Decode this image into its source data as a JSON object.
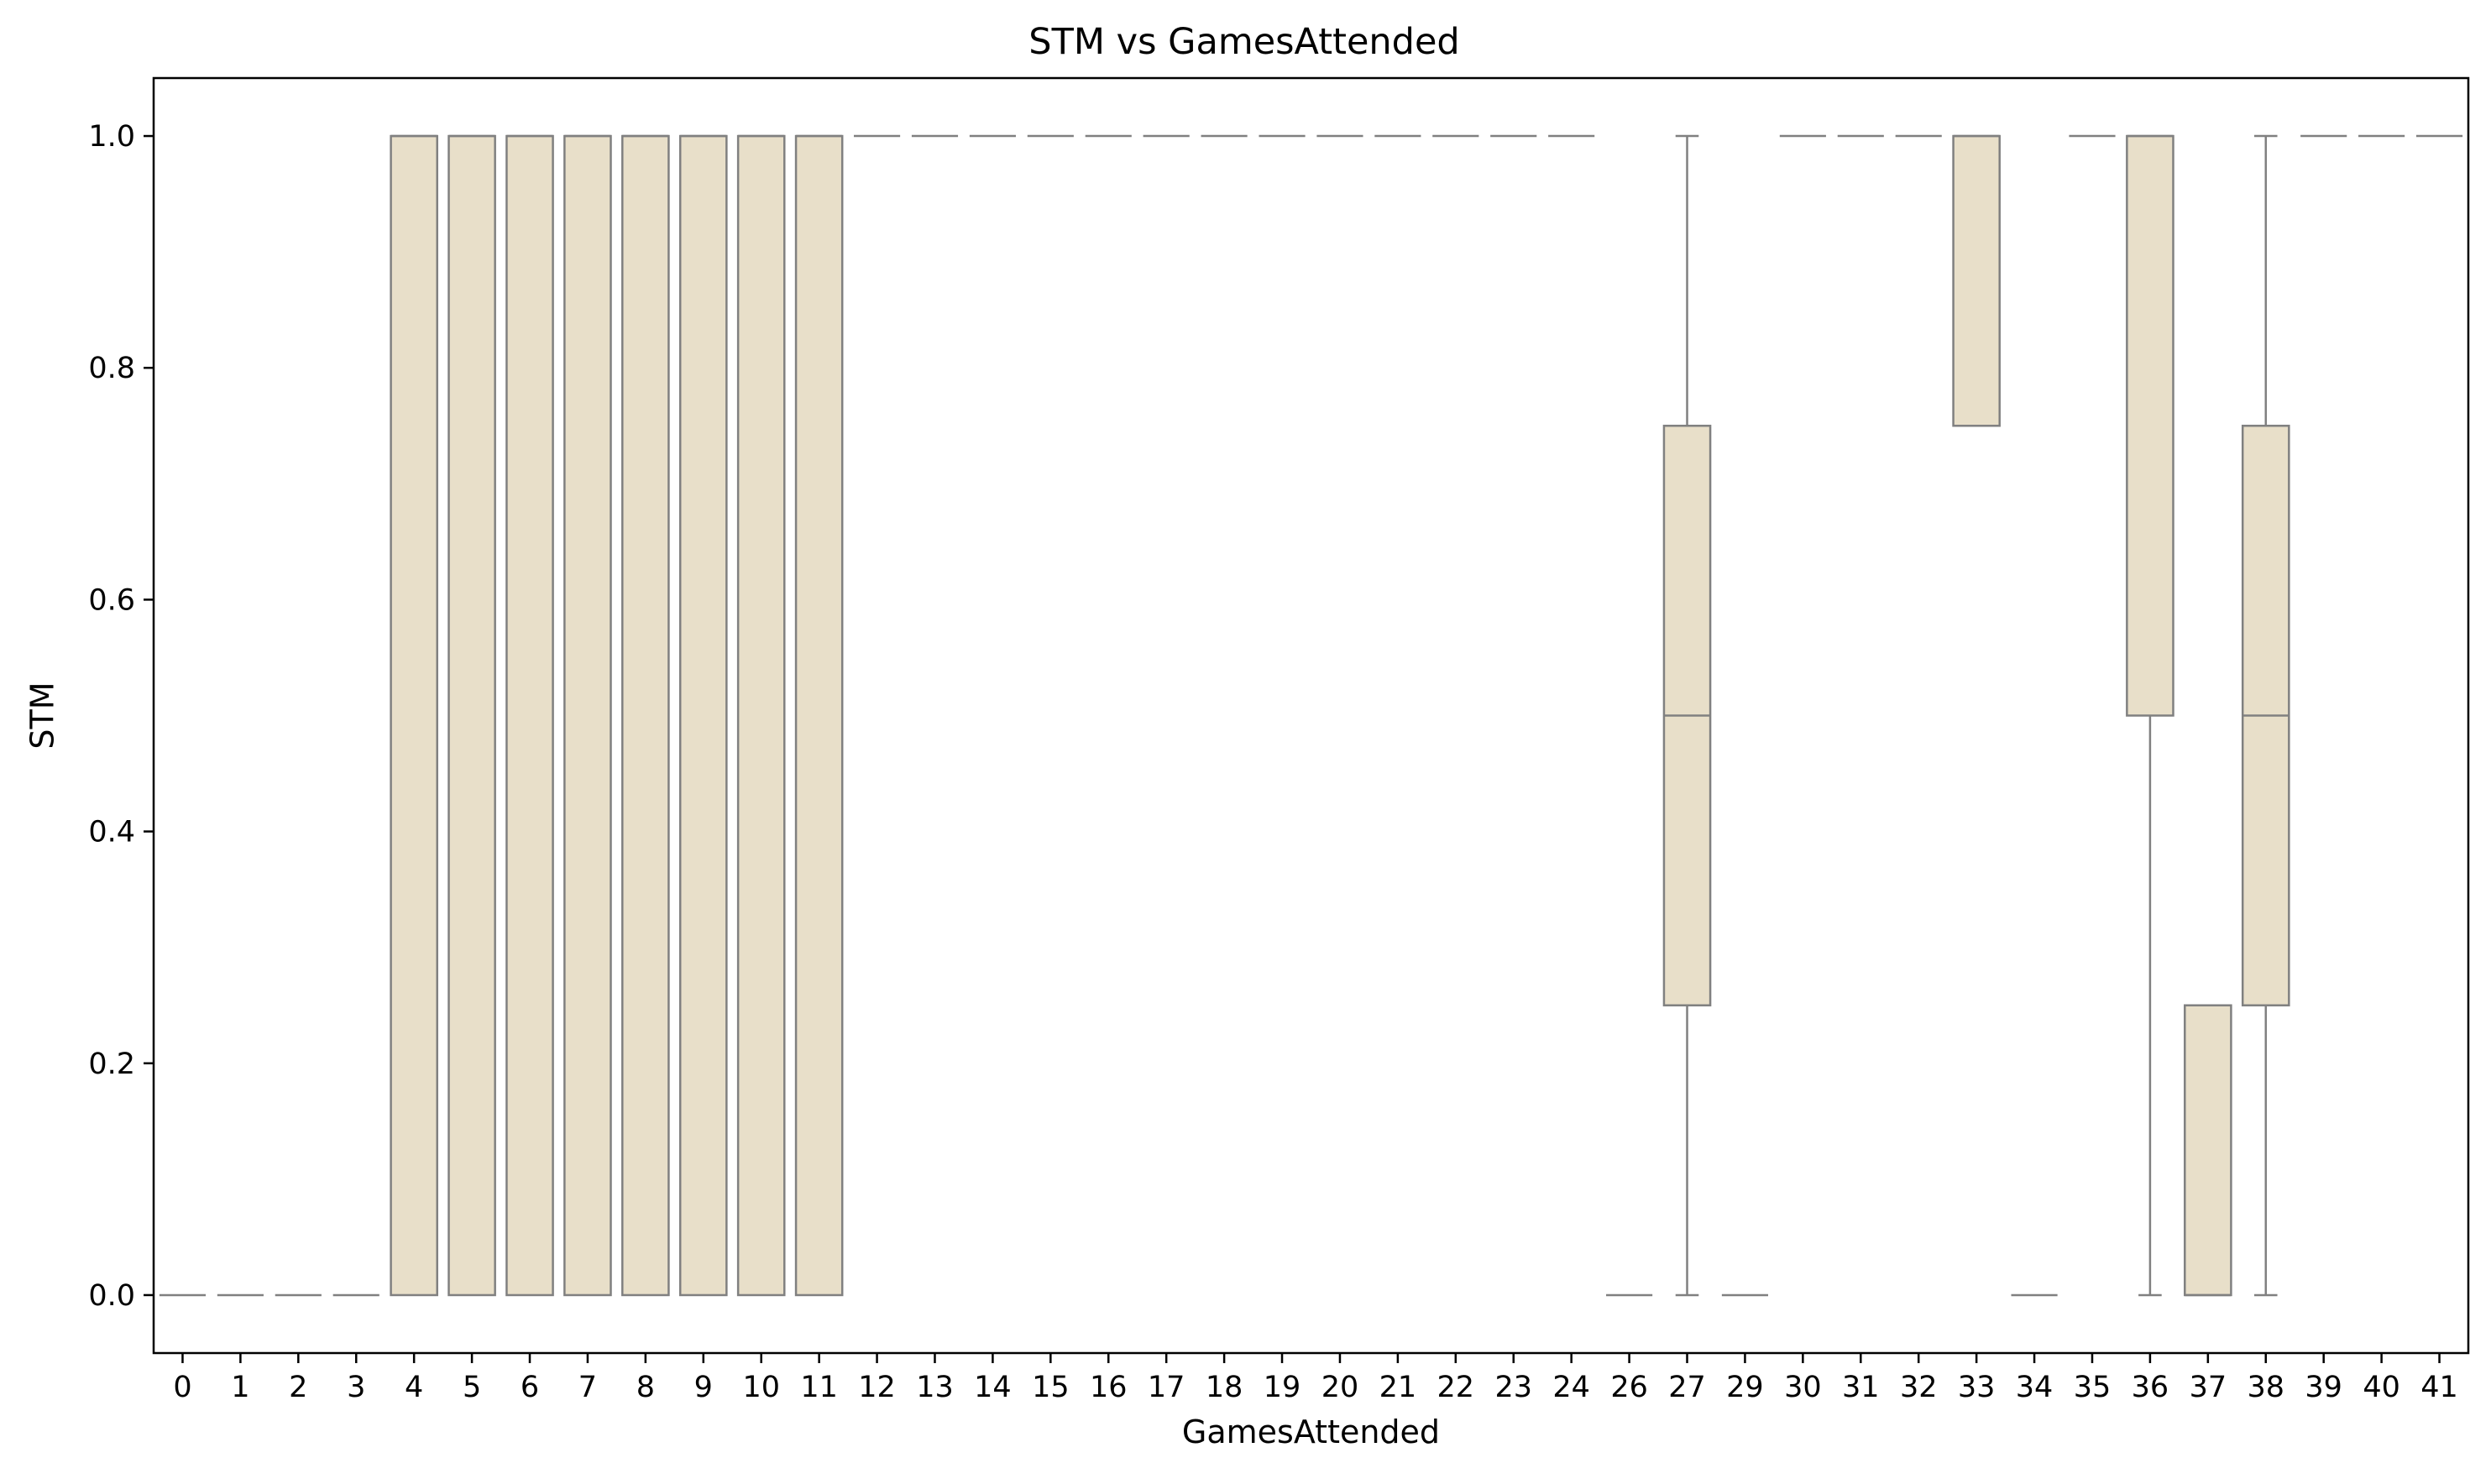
{
  "chart_data": {
    "type": "box",
    "title": "STM vs GamesAttended",
    "xlabel": "GamesAttended",
    "ylabel": "STM",
    "ylim": [
      -0.05,
      1.05
    ],
    "yticks": [
      "0.0",
      "0.2",
      "0.4",
      "0.6",
      "0.8",
      "1.0"
    ],
    "yticks_values": [
      0.0,
      0.2,
      0.4,
      0.6,
      0.8,
      1.0
    ],
    "box_color": "#e8dfc9",
    "line_color": "#808080",
    "categories": [
      "0",
      "1",
      "2",
      "3",
      "4",
      "5",
      "6",
      "7",
      "8",
      "9",
      "10",
      "11",
      "12",
      "13",
      "14",
      "15",
      "16",
      "17",
      "18",
      "19",
      "20",
      "21",
      "22",
      "23",
      "24",
      "26",
      "27",
      "29",
      "30",
      "31",
      "32",
      "33",
      "34",
      "35",
      "36",
      "37",
      "38",
      "39",
      "40",
      "41"
    ],
    "boxes": [
      {
        "category": "0",
        "whislo": 0,
        "q1": 0,
        "med": 0,
        "q3": 0,
        "whishi": 0
      },
      {
        "category": "1",
        "whislo": 0,
        "q1": 0,
        "med": 0,
        "q3": 0,
        "whishi": 0
      },
      {
        "category": "2",
        "whislo": 0,
        "q1": 0,
        "med": 0,
        "q3": 0,
        "whishi": 0
      },
      {
        "category": "3",
        "whislo": 0,
        "q1": 0,
        "med": 0,
        "q3": 0,
        "whishi": 0
      },
      {
        "category": "4",
        "whislo": 0,
        "q1": 0,
        "med": 1,
        "q3": 1,
        "whishi": 1
      },
      {
        "category": "5",
        "whislo": 0,
        "q1": 0,
        "med": 1,
        "q3": 1,
        "whishi": 1
      },
      {
        "category": "6",
        "whislo": 0,
        "q1": 0,
        "med": 1,
        "q3": 1,
        "whishi": 1
      },
      {
        "category": "7",
        "whislo": 0,
        "q1": 0,
        "med": 1,
        "q3": 1,
        "whishi": 1
      },
      {
        "category": "8",
        "whislo": 0,
        "q1": 0,
        "med": 1,
        "q3": 1,
        "whishi": 1
      },
      {
        "category": "9",
        "whislo": 0,
        "q1": 0,
        "med": 1,
        "q3": 1,
        "whishi": 1
      },
      {
        "category": "10",
        "whislo": 0,
        "q1": 0,
        "med": 1,
        "q3": 1,
        "whishi": 1
      },
      {
        "category": "11",
        "whislo": 0,
        "q1": 0,
        "med": 1,
        "q3": 1,
        "whishi": 1
      },
      {
        "category": "12",
        "whislo": 1,
        "q1": 1,
        "med": 1,
        "q3": 1,
        "whishi": 1
      },
      {
        "category": "13",
        "whislo": 1,
        "q1": 1,
        "med": 1,
        "q3": 1,
        "whishi": 1
      },
      {
        "category": "14",
        "whislo": 1,
        "q1": 1,
        "med": 1,
        "q3": 1,
        "whishi": 1
      },
      {
        "category": "15",
        "whislo": 1,
        "q1": 1,
        "med": 1,
        "q3": 1,
        "whishi": 1
      },
      {
        "category": "16",
        "whislo": 1,
        "q1": 1,
        "med": 1,
        "q3": 1,
        "whishi": 1
      },
      {
        "category": "17",
        "whislo": 1,
        "q1": 1,
        "med": 1,
        "q3": 1,
        "whishi": 1
      },
      {
        "category": "18",
        "whislo": 1,
        "q1": 1,
        "med": 1,
        "q3": 1,
        "whishi": 1
      },
      {
        "category": "19",
        "whislo": 1,
        "q1": 1,
        "med": 1,
        "q3": 1,
        "whishi": 1
      },
      {
        "category": "20",
        "whislo": 1,
        "q1": 1,
        "med": 1,
        "q3": 1,
        "whishi": 1
      },
      {
        "category": "21",
        "whislo": 1,
        "q1": 1,
        "med": 1,
        "q3": 1,
        "whishi": 1
      },
      {
        "category": "22",
        "whislo": 1,
        "q1": 1,
        "med": 1,
        "q3": 1,
        "whishi": 1
      },
      {
        "category": "23",
        "whislo": 1,
        "q1": 1,
        "med": 1,
        "q3": 1,
        "whishi": 1
      },
      {
        "category": "24",
        "whislo": 1,
        "q1": 1,
        "med": 1,
        "q3": 1,
        "whishi": 1
      },
      {
        "category": "26",
        "whislo": 0,
        "q1": 0,
        "med": 0,
        "q3": 0,
        "whishi": 0
      },
      {
        "category": "27",
        "whislo": 0,
        "q1": 0.25,
        "med": 0.5,
        "q3": 0.75,
        "whishi": 1
      },
      {
        "category": "29",
        "whislo": 0,
        "q1": 0,
        "med": 0,
        "q3": 0,
        "whishi": 0
      },
      {
        "category": "30",
        "whislo": 1,
        "q1": 1,
        "med": 1,
        "q3": 1,
        "whishi": 1
      },
      {
        "category": "31",
        "whislo": 1,
        "q1": 1,
        "med": 1,
        "q3": 1,
        "whishi": 1
      },
      {
        "category": "32",
        "whislo": 1,
        "q1": 1,
        "med": 1,
        "q3": 1,
        "whishi": 1
      },
      {
        "category": "33",
        "whislo": 0.75,
        "q1": 0.75,
        "med": 1,
        "q3": 1,
        "whishi": 1
      },
      {
        "category": "34",
        "whislo": 0,
        "q1": 0,
        "med": 0,
        "q3": 0,
        "whishi": 0
      },
      {
        "category": "35",
        "whislo": 1,
        "q1": 1,
        "med": 1,
        "q3": 1,
        "whishi": 1
      },
      {
        "category": "36",
        "whislo": 0,
        "q1": 0.5,
        "med": 1,
        "q3": 1,
        "whishi": 1
      },
      {
        "category": "37",
        "whislo": 0,
        "q1": 0,
        "med": 0,
        "q3": 0.25,
        "whishi": 0.25
      },
      {
        "category": "38",
        "whislo": 0,
        "q1": 0.25,
        "med": 0.5,
        "q3": 0.75,
        "whishi": 1
      },
      {
        "category": "39",
        "whislo": 1,
        "q1": 1,
        "med": 1,
        "q3": 1,
        "whishi": 1
      },
      {
        "category": "40",
        "whislo": 1,
        "q1": 1,
        "med": 1,
        "q3": 1,
        "whishi": 1
      },
      {
        "category": "41",
        "whislo": 1,
        "q1": 1,
        "med": 1,
        "q3": 1,
        "whishi": 1
      }
    ]
  }
}
